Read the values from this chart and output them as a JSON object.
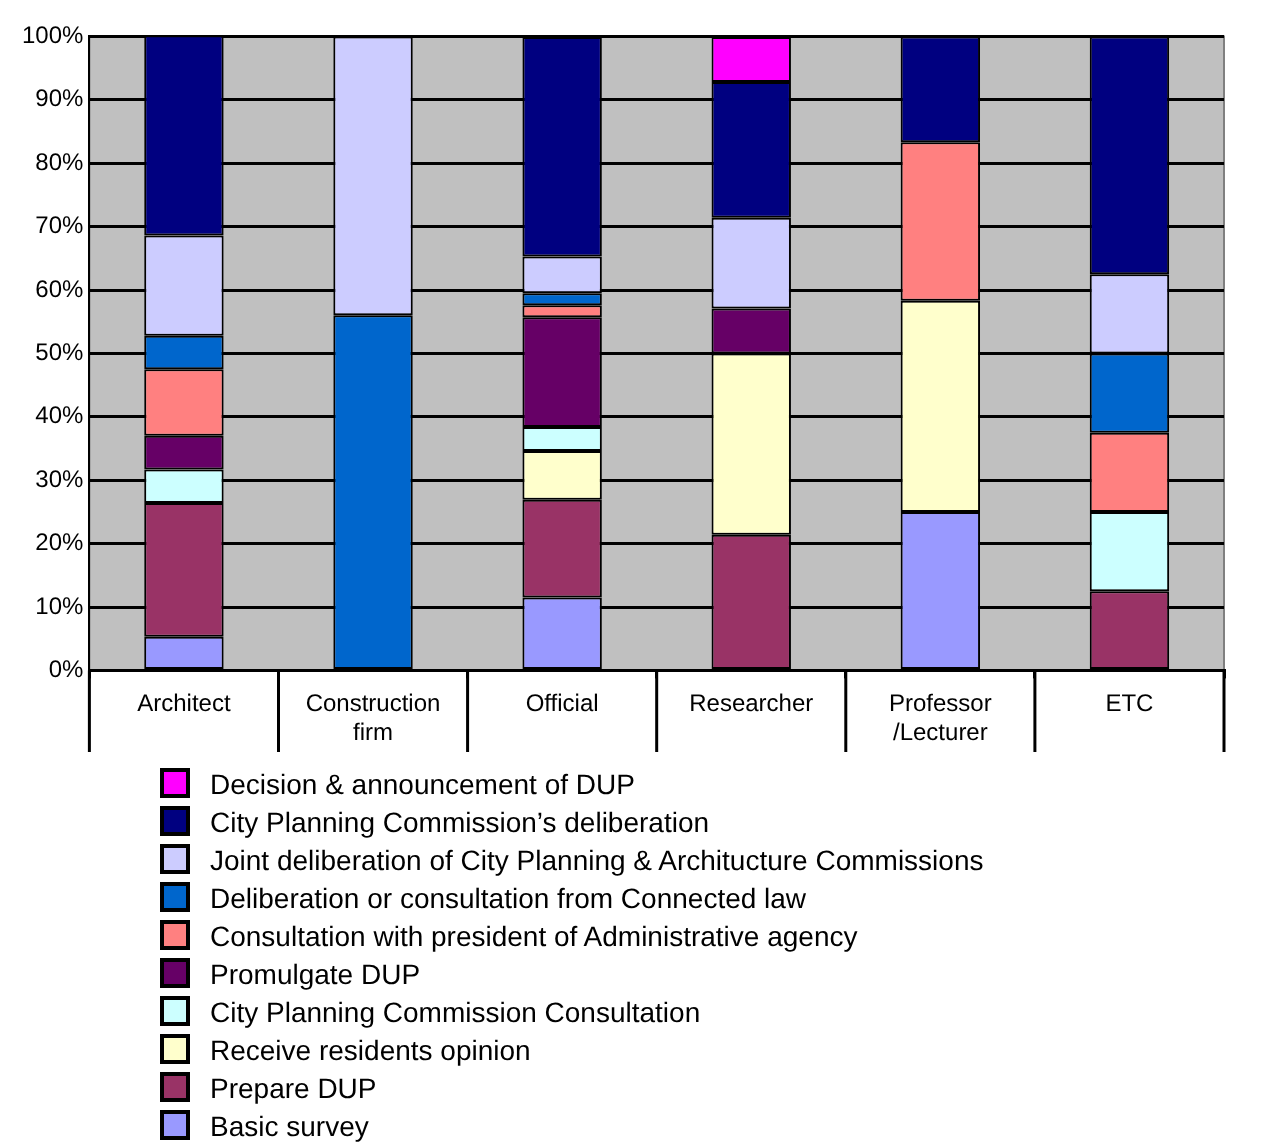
{
  "chart_data": {
    "type": "bar",
    "stacked": true,
    "categories": [
      "Architect",
      "Construction firm",
      "Official",
      "Researcher",
      "Professor /Lecturer",
      "ETC"
    ],
    "ylim": [
      0,
      100
    ],
    "yticks": [
      {
        "value": 0,
        "label": "0%"
      },
      {
        "value": 10,
        "label": "10%"
      },
      {
        "value": 20,
        "label": "20%"
      },
      {
        "value": 30,
        "label": "30%"
      },
      {
        "value": 40,
        "label": "40%"
      },
      {
        "value": 50,
        "label": "50%"
      },
      {
        "value": 60,
        "label": "60%"
      },
      {
        "value": 70,
        "label": "70%"
      },
      {
        "value": 80,
        "label": "80%"
      },
      {
        "value": 90,
        "label": "90%"
      },
      {
        "value": 100,
        "label": "100%"
      }
    ],
    "grid": "y",
    "legend": "bottom",
    "series": [
      {
        "name": "Basic survey",
        "color": "#9999ff",
        "values": [
          5.3,
          null,
          11.5,
          null,
          25,
          null
        ]
      },
      {
        "name": "Prepare DUP",
        "color": "#993366",
        "values": [
          21.1,
          null,
          15.4,
          21.4,
          null,
          12.5
        ]
      },
      {
        "name": "Receive residents opinion",
        "color": "#ffffcc",
        "values": [
          null,
          null,
          7.7,
          28.6,
          33.3,
          null
        ]
      },
      {
        "name": "City Planning Commission  Consultation",
        "color": "#ccffff",
        "values": [
          5.3,
          null,
          3.8,
          null,
          null,
          12.5
        ]
      },
      {
        "name": "Promulgate DUP",
        "color": "#660066",
        "values": [
          5.3,
          null,
          17.3,
          7.1,
          null,
          null
        ]
      },
      {
        "name": "Consultation with president of Administrative agency",
        "color": "#ff8080",
        "values": [
          10.5,
          null,
          1.9,
          null,
          25,
          12.5
        ]
      },
      {
        "name": "Deliberation or consultation from Connected law",
        "color": "#0066cc",
        "values": [
          5.3,
          56,
          1.9,
          null,
          null,
          12.5
        ]
      },
      {
        "name": "Joint deliberation of City Planning & Architucture Commissions",
        "color": "#ccccff",
        "values": [
          15.8,
          44,
          5.8,
          14.3,
          null,
          12.5
        ]
      },
      {
        "name": "City Planning Commission’s  deliberation",
        "color": "#000080",
        "values": [
          31.6,
          null,
          34.6,
          21.4,
          16.7,
          37.5
        ]
      },
      {
        "name": "Decision & announcement of DUP",
        "color": "#ff00ff",
        "values": [
          null,
          null,
          null,
          7.1,
          null,
          null
        ]
      }
    ]
  }
}
